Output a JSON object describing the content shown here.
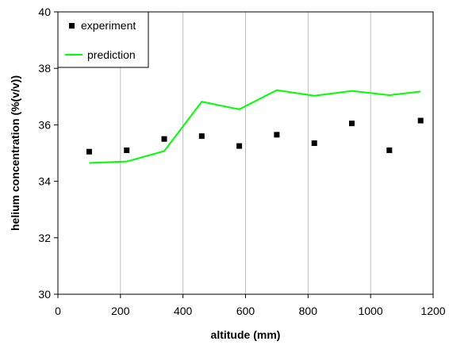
{
  "chart_data": {
    "type": "scatter",
    "title": "",
    "xlabel": "altitude (mm)",
    "ylabel": "helium concentration (%(v/v))",
    "xlim": [
      0,
      1200
    ],
    "ylim": [
      30,
      40
    ],
    "xticks": [
      0,
      200,
      400,
      600,
      800,
      1000,
      1200
    ],
    "yticks": [
      30,
      32,
      34,
      36,
      38,
      40
    ],
    "grid": "vertical",
    "legend_position": "top-left",
    "series": [
      {
        "name": "experiment",
        "type": "scatter",
        "marker": "square",
        "color": "#000000",
        "x": [
          100,
          220,
          340,
          460,
          580,
          700,
          820,
          940,
          1060,
          1160
        ],
        "y": [
          35.05,
          35.1,
          35.5,
          35.6,
          35.25,
          35.65,
          35.35,
          36.05,
          35.1,
          36.15
        ]
      },
      {
        "name": "prediction",
        "type": "line",
        "color": "#00ff00",
        "x": [
          100,
          220,
          340,
          460,
          580,
          700,
          820,
          940,
          1060,
          1160
        ],
        "y": [
          34.65,
          34.7,
          35.07,
          36.82,
          36.55,
          37.23,
          37.03,
          37.2,
          37.05,
          37.18
        ]
      }
    ]
  }
}
